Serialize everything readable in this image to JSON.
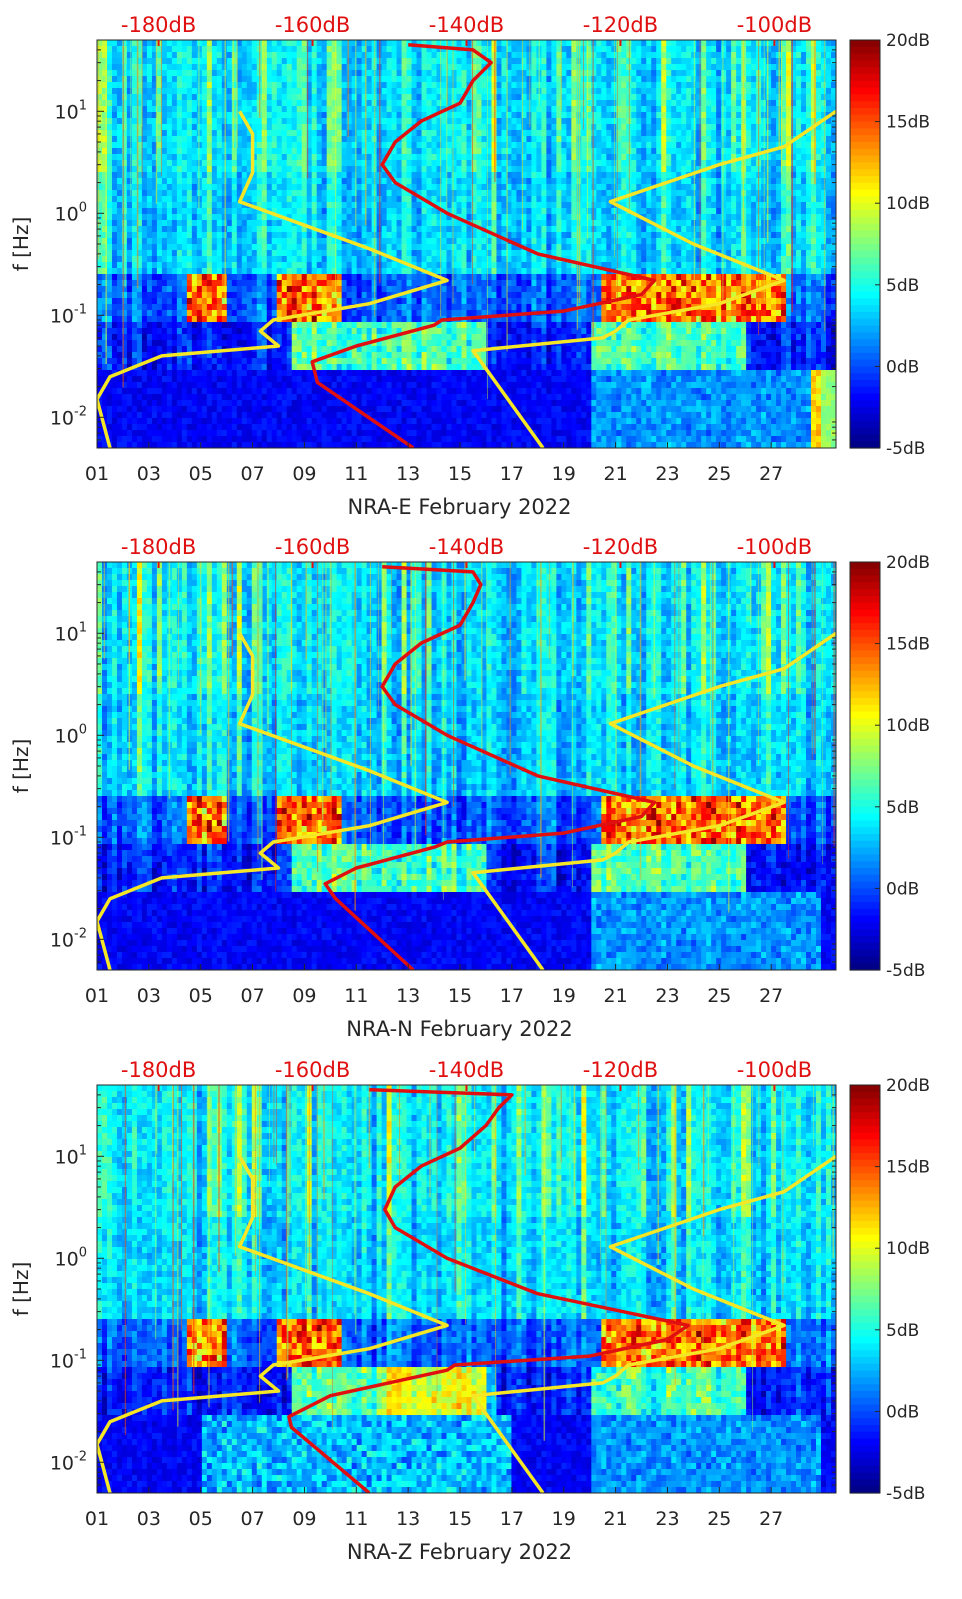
{
  "chart_data": [
    {
      "type": "heatmap",
      "xlabel": "NRA-E February 2022",
      "ylabel": "f [Hz]",
      "x_ticks": [
        "01",
        "03",
        "05",
        "07",
        "09",
        "11",
        "13",
        "15",
        "17",
        "19",
        "21",
        "23",
        "25",
        "27"
      ],
      "y_ticks": [
        "10^-2",
        "10^-1",
        "10^0",
        "10^1"
      ],
      "top_ticks": [
        "-180dB",
        "-160dB",
        "-140dB",
        "-120dB",
        "-100dB"
      ],
      "colorbar_ticks": [
        "20dB",
        "15dB",
        "10dB",
        "5dB",
        "0dB",
        "-5dB"
      ],
      "colorbar_range_db": [
        -5,
        20
      ],
      "x_range_days": [
        1,
        29.5
      ],
      "y_range_hz": [
        0.005,
        50
      ],
      "top_range_db": [
        -188,
        -92
      ],
      "red_curve": [
        [
          13.2,
          0.005
        ],
        [
          9.5,
          0.022
        ],
        [
          9.3,
          0.035
        ],
        [
          11,
          0.05
        ],
        [
          14,
          0.08
        ],
        [
          14.3,
          0.09
        ],
        [
          19,
          0.11
        ],
        [
          22,
          0.16
        ],
        [
          22.5,
          0.22
        ],
        [
          18,
          0.4
        ],
        [
          14.5,
          1.0
        ],
        [
          12.5,
          2.0
        ],
        [
          12.0,
          3.0
        ],
        [
          12.5,
          5.0
        ],
        [
          13.5,
          8.0
        ],
        [
          15.0,
          12.0
        ],
        [
          15.5,
          20.0
        ],
        [
          16.2,
          30.0
        ],
        [
          15.5,
          40.0
        ],
        [
          13,
          45
        ]
      ],
      "yellow_left": [
        [
          1.5,
          0.005
        ],
        [
          1.0,
          0.015
        ],
        [
          1.5,
          0.025
        ],
        [
          3.5,
          0.04
        ],
        [
          8.0,
          0.05
        ],
        [
          7.3,
          0.07
        ],
        [
          7.8,
          0.09
        ],
        [
          11.5,
          0.13
        ],
        [
          14.5,
          0.22
        ],
        [
          11.5,
          0.45
        ],
        [
          6.5,
          1.3
        ],
        [
          7.0,
          2.5
        ],
        [
          7.0,
          6.0
        ],
        [
          6.5,
          10.0
        ]
      ],
      "yellow_right": [
        [
          18.2,
          0.005
        ],
        [
          15.5,
          0.045
        ],
        [
          20.5,
          0.06
        ],
        [
          21.0,
          0.07
        ],
        [
          21.5,
          0.09
        ],
        [
          25.0,
          0.13
        ],
        [
          27.5,
          0.22
        ],
        [
          24.0,
          0.5
        ],
        [
          20.8,
          1.3
        ],
        [
          25.0,
          3.0
        ],
        [
          27.5,
          4.5
        ],
        [
          29.5,
          10.0
        ]
      ]
    },
    {
      "type": "heatmap",
      "xlabel": "NRA-N February 2022",
      "ylabel": "f [Hz]",
      "x_ticks": [
        "01",
        "03",
        "05",
        "07",
        "09",
        "11",
        "13",
        "15",
        "17",
        "19",
        "21",
        "23",
        "25",
        "27"
      ],
      "y_ticks": [
        "10^-2",
        "10^-1",
        "10^0",
        "10^1"
      ],
      "top_ticks": [
        "-180dB",
        "-160dB",
        "-140dB",
        "-120dB",
        "-100dB"
      ],
      "colorbar_ticks": [
        "20dB",
        "15dB",
        "10dB",
        "5dB",
        "0dB",
        "-5dB"
      ],
      "colorbar_range_db": [
        -5,
        20
      ],
      "x_range_days": [
        1,
        29.5
      ],
      "y_range_hz": [
        0.005,
        50
      ],
      "top_range_db": [
        -188,
        -92
      ],
      "red_curve": [
        [
          13.2,
          0.005
        ],
        [
          10.2,
          0.025
        ],
        [
          9.8,
          0.035
        ],
        [
          11,
          0.05
        ],
        [
          14,
          0.08
        ],
        [
          14.5,
          0.09
        ],
        [
          19,
          0.11
        ],
        [
          22,
          0.16
        ],
        [
          22.5,
          0.22
        ],
        [
          18,
          0.4
        ],
        [
          14.5,
          1.0
        ],
        [
          12.5,
          2.0
        ],
        [
          12.0,
          3.0
        ],
        [
          12.5,
          5.0
        ],
        [
          13.5,
          8.0
        ],
        [
          15.0,
          12.0
        ],
        [
          15.5,
          20.0
        ],
        [
          15.8,
          30.0
        ],
        [
          15.5,
          40.0
        ],
        [
          12,
          45
        ]
      ],
      "yellow_left": [
        [
          1.5,
          0.005
        ],
        [
          1.0,
          0.015
        ],
        [
          1.5,
          0.025
        ],
        [
          3.5,
          0.04
        ],
        [
          8.0,
          0.05
        ],
        [
          7.3,
          0.07
        ],
        [
          7.8,
          0.09
        ],
        [
          11.5,
          0.13
        ],
        [
          14.5,
          0.22
        ],
        [
          11.5,
          0.45
        ],
        [
          6.5,
          1.3
        ],
        [
          7.0,
          2.5
        ],
        [
          7.0,
          6.0
        ],
        [
          6.5,
          10.0
        ]
      ],
      "yellow_right": [
        [
          18.2,
          0.005
        ],
        [
          15.5,
          0.045
        ],
        [
          20.5,
          0.06
        ],
        [
          21.0,
          0.07
        ],
        [
          21.5,
          0.09
        ],
        [
          25.0,
          0.13
        ],
        [
          27.5,
          0.22
        ],
        [
          24.0,
          0.5
        ],
        [
          20.8,
          1.3
        ],
        [
          25.0,
          3.0
        ],
        [
          27.5,
          4.5
        ],
        [
          29.5,
          10.0
        ]
      ]
    },
    {
      "type": "heatmap",
      "xlabel": "NRA-Z February 2022",
      "ylabel": "f [Hz]",
      "x_ticks": [
        "01",
        "03",
        "05",
        "07",
        "09",
        "11",
        "13",
        "15",
        "17",
        "19",
        "21",
        "23",
        "25",
        "27"
      ],
      "y_ticks": [
        "10^-2",
        "10^-1",
        "10^0",
        "10^1"
      ],
      "top_ticks": [
        "-180dB",
        "-160dB",
        "-140dB",
        "-120dB",
        "-100dB"
      ],
      "colorbar_ticks": [
        "20dB",
        "15dB",
        "10dB",
        "5dB",
        "0dB",
        "-5dB"
      ],
      "colorbar_range_db": [
        -5,
        20
      ],
      "x_range_days": [
        1,
        29.5
      ],
      "y_range_hz": [
        0.005,
        50
      ],
      "top_range_db": [
        -188,
        -92
      ],
      "red_curve": [
        [
          11.5,
          0.005
        ],
        [
          8.5,
          0.022
        ],
        [
          8.4,
          0.028
        ],
        [
          10,
          0.045
        ],
        [
          14.5,
          0.08
        ],
        [
          14.8,
          0.09
        ],
        [
          20,
          0.11
        ],
        [
          23,
          0.16
        ],
        [
          23.8,
          0.22
        ],
        [
          18,
          0.45
        ],
        [
          14.5,
          1.0
        ],
        [
          12.5,
          2.0
        ],
        [
          12.1,
          3.0
        ],
        [
          12.5,
          5.0
        ],
        [
          13.5,
          8.0
        ],
        [
          15.0,
          12.0
        ],
        [
          16.0,
          20.0
        ],
        [
          16.5,
          30.0
        ],
        [
          17.0,
          40.0
        ],
        [
          11.5,
          45
        ]
      ],
      "yellow_left": [
        [
          1.5,
          0.005
        ],
        [
          1.0,
          0.015
        ],
        [
          1.5,
          0.025
        ],
        [
          3.5,
          0.04
        ],
        [
          8.0,
          0.05
        ],
        [
          7.3,
          0.07
        ],
        [
          7.8,
          0.09
        ],
        [
          11.5,
          0.13
        ],
        [
          14.5,
          0.22
        ],
        [
          11.5,
          0.45
        ],
        [
          6.5,
          1.3
        ],
        [
          7.0,
          2.5
        ],
        [
          7.0,
          6.0
        ],
        [
          6.5,
          10.0
        ]
      ],
      "yellow_right": [
        [
          18.2,
          0.005
        ],
        [
          15.5,
          0.045
        ],
        [
          20.5,
          0.06
        ],
        [
          21.0,
          0.07
        ],
        [
          21.5,
          0.09
        ],
        [
          25.0,
          0.13
        ],
        [
          27.5,
          0.22
        ],
        [
          24.0,
          0.5
        ],
        [
          20.8,
          1.3
        ],
        [
          25.0,
          3.0
        ],
        [
          27.5,
          4.5
        ],
        [
          29.5,
          10.0
        ]
      ]
    }
  ],
  "colors": {
    "red_curve": "#e01010",
    "yellow_curve": "#f5e626",
    "top_tick_text": "#e01010",
    "axis_text": "#262626"
  }
}
